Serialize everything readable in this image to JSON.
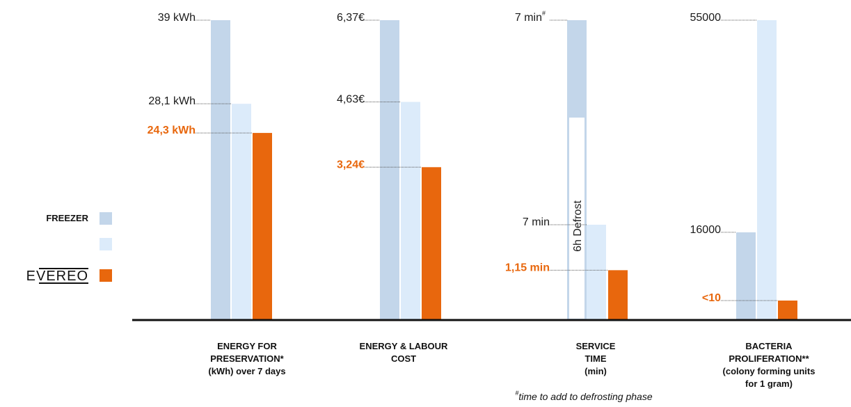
{
  "chart_data": {
    "type": "bar",
    "legend": [
      {
        "name": "FREEZER",
        "color": "#c3d6ea"
      },
      {
        "name": "",
        "color": "#dcebfa"
      },
      {
        "name": "EVEREO",
        "color": "#e8670d",
        "logo": true
      }
    ],
    "groups": [
      {
        "label_lines": [
          "ENERGY FOR",
          "PRESERVATION*",
          "(kWh) over 7 days"
        ],
        "bars": [
          {
            "value": 39,
            "label": "39 kWh"
          },
          {
            "value": 28.1,
            "label": "28,1 kWh"
          },
          {
            "value": 24.3,
            "label": "24,3 kWh",
            "highlight": true
          }
        ]
      },
      {
        "label_lines": [
          "ENERGY & LABOUR",
          "COST"
        ],
        "bars": [
          {
            "value": 6.37,
            "label": "6,37€"
          },
          {
            "value": 4.63,
            "label": "4,63€"
          },
          {
            "value": 3.24,
            "label": "3,24€",
            "highlight": true
          }
        ]
      },
      {
        "label_lines": [
          "SERVICE",
          "TIME",
          "(min)"
        ],
        "note": "time to add to defrosting phase",
        "note_mark": "#",
        "defrost_label": "6h Defrost",
        "bars": [
          {
            "value": 7,
            "label": "7 min",
            "sup": "#"
          },
          {
            "value": 7,
            "label": "7 min"
          },
          {
            "value": 1.15,
            "label": "1,15 min",
            "highlight": true
          }
        ]
      },
      {
        "label_lines": [
          "BACTERIA",
          "PROLIFERATION**",
          "(colony forming units",
          "for 1 gram)"
        ],
        "bars": [
          {
            "value": 16000,
            "label": "16000"
          },
          {
            "value": 55000,
            "label": "55000"
          },
          {
            "value": 10,
            "label": "<10",
            "highlight": true
          }
        ]
      }
    ]
  }
}
